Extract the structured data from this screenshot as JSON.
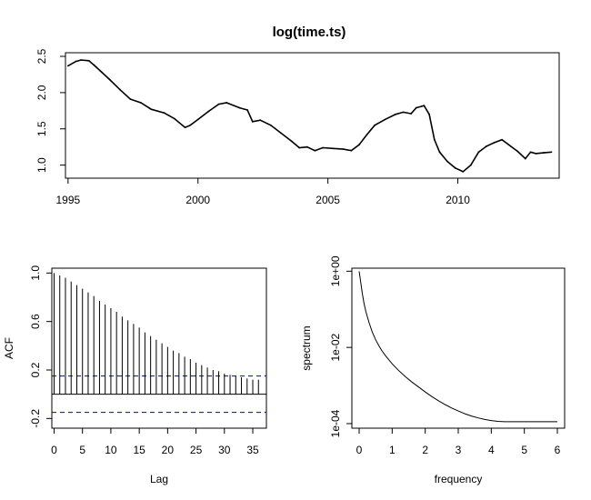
{
  "chart_data": [
    {
      "type": "line",
      "title": "log(time.ts)",
      "xlabel": "",
      "ylabel": "",
      "xlim": [
        1994.9,
        2013.9
      ],
      "ylim": [
        0.82,
        2.55
      ],
      "x_ticks": [
        1995,
        2000,
        2005,
        2010
      ],
      "x_tick_labels": [
        "1995",
        "2000",
        "2005",
        "2010"
      ],
      "y_ticks": [
        1.0,
        1.5,
        2.0,
        2.5
      ],
      "y_tick_labels": [
        "1.0",
        "1.5",
        "2.0",
        "2.5"
      ],
      "grid": false,
      "series": [
        {
          "x": [
            1995.0,
            1995.3,
            1995.5,
            1995.8,
            1996.0,
            1996.3,
            1996.6,
            1997.0,
            1997.4,
            1997.8,
            1998.2,
            1998.7,
            1999.1,
            1999.5,
            1999.7,
            2000.0,
            2000.4,
            2000.8,
            2001.1,
            2001.6,
            2001.9,
            2002.1,
            2002.4,
            2002.8,
            2003.2,
            2003.6,
            2003.9,
            2004.2,
            2004.5,
            2004.8,
            2005.2,
            2005.6,
            2005.9,
            2006.2,
            2006.5,
            2006.8,
            2007.2,
            2007.6,
            2007.9,
            2008.2,
            2008.4,
            2008.7,
            2008.9,
            2009.1,
            2009.3,
            2009.6,
            2009.9,
            2010.2,
            2010.5,
            2010.8,
            2011.1,
            2011.4,
            2011.7,
            2012.0,
            2012.3,
            2012.6,
            2012.8,
            2013.0,
            2013.3,
            2013.6
          ],
          "y": [
            2.37,
            2.43,
            2.45,
            2.44,
            2.38,
            2.28,
            2.18,
            2.04,
            1.91,
            1.86,
            1.77,
            1.72,
            1.64,
            1.52,
            1.55,
            1.63,
            1.74,
            1.84,
            1.86,
            1.79,
            1.76,
            1.6,
            1.62,
            1.55,
            1.44,
            1.33,
            1.24,
            1.25,
            1.2,
            1.24,
            1.23,
            1.22,
            1.2,
            1.28,
            1.42,
            1.55,
            1.63,
            1.7,
            1.73,
            1.71,
            1.79,
            1.82,
            1.7,
            1.35,
            1.18,
            1.05,
            0.96,
            0.91,
            1.0,
            1.18,
            1.26,
            1.31,
            1.35,
            1.27,
            1.19,
            1.09,
            1.18,
            1.16,
            1.17,
            1.18
          ]
        }
      ]
    },
    {
      "type": "bar",
      "title": "",
      "xlabel": "Lag",
      "ylabel": "ACF",
      "xlim": [
        -0.4,
        37.4
      ],
      "ylim": [
        -0.28,
        1.04
      ],
      "x_ticks": [
        0,
        5,
        10,
        15,
        20,
        25,
        30,
        35
      ],
      "x_tick_labels": [
        "0",
        "5",
        "10",
        "15",
        "20",
        "25",
        "30",
        "35"
      ],
      "y_ticks": [
        -0.2,
        0.2,
        0.6,
        1.0
      ],
      "y_tick_labels": [
        "-0.2",
        "0.2",
        "0.6",
        "1.0"
      ],
      "conf_limit": 0.15,
      "series": [
        {
          "x": [
            1,
            2,
            3,
            4,
            5,
            6,
            7,
            8,
            9,
            10,
            11,
            12,
            13,
            14,
            15,
            16,
            17,
            18,
            19,
            20,
            21,
            22,
            23,
            24,
            25,
            26,
            27,
            28,
            29,
            30,
            31,
            32,
            33,
            34,
            35,
            36
          ],
          "values": [
            0.98,
            0.96,
            0.93,
            0.9,
            0.87,
            0.84,
            0.81,
            0.77,
            0.74,
            0.71,
            0.68,
            0.64,
            0.61,
            0.58,
            0.55,
            0.51,
            0.48,
            0.45,
            0.42,
            0.39,
            0.36,
            0.34,
            0.31,
            0.29,
            0.26,
            0.24,
            0.22,
            0.2,
            0.19,
            0.17,
            0.16,
            0.15,
            0.14,
            0.13,
            0.12,
            0.12
          ]
        }
      ]
    },
    {
      "type": "line",
      "title": "",
      "xlabel": "frequency",
      "ylabel": "spectrum",
      "scale_y": "log",
      "xlim": [
        -0.22,
        6.22
      ],
      "ylim_log10": [
        -4.12,
        0.08
      ],
      "x_ticks": [
        0,
        1,
        2,
        3,
        4,
        5,
        6
      ],
      "x_tick_labels": [
        "0",
        "1",
        "2",
        "3",
        "4",
        "5",
        "6"
      ],
      "y_ticks_log10": [
        0,
        -2,
        -4
      ],
      "y_tick_labels": [
        "1e+00",
        "1e-02",
        "1e-04"
      ],
      "series": [
        {
          "x": [
            0.0,
            0.05,
            0.1,
            0.15,
            0.2,
            0.3,
            0.4,
            0.5,
            0.6,
            0.7,
            0.8,
            1.0,
            1.2,
            1.4,
            1.6,
            1.8,
            2.0,
            2.2,
            2.4,
            2.6,
            2.8,
            3.0,
            3.2,
            3.4,
            3.6,
            3.8,
            4.0,
            4.2,
            4.4,
            4.6,
            4.8,
            5.0,
            5.2,
            5.4,
            5.6,
            5.8,
            6.0
          ],
          "log10_y": [
            0.0,
            -0.3,
            -0.6,
            -0.85,
            -1.05,
            -1.35,
            -1.6,
            -1.8,
            -1.96,
            -2.1,
            -2.22,
            -2.43,
            -2.61,
            -2.77,
            -2.91,
            -3.04,
            -3.17,
            -3.29,
            -3.4,
            -3.5,
            -3.59,
            -3.67,
            -3.74,
            -3.8,
            -3.85,
            -3.89,
            -3.92,
            -3.94,
            -3.95,
            -3.95,
            -3.95,
            -3.95,
            -3.95,
            -3.95,
            -3.95,
            -3.95,
            -3.95
          ]
        }
      ]
    }
  ]
}
